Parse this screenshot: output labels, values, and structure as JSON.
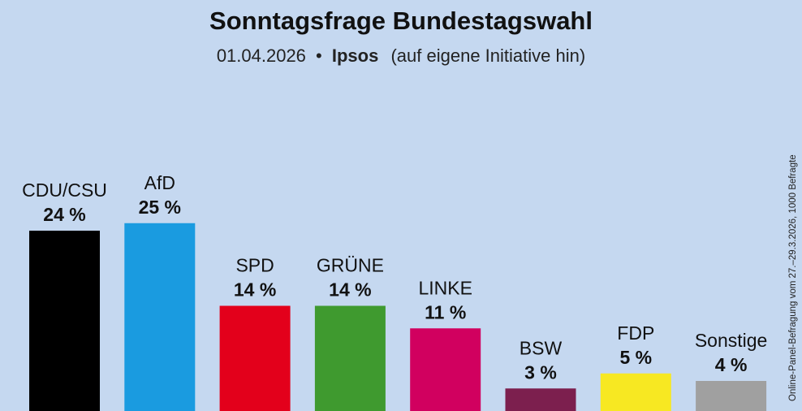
{
  "chart_data": {
    "type": "bar",
    "title": "Sonntagsfrage Bundestagswahl",
    "subtitle": {
      "date": "01.04.2026",
      "separator": "•",
      "institute": "Ipsos",
      "note": "(auf eigene Initiative hin)"
    },
    "categories": [
      "CDU/CSU",
      "AfD",
      "SPD",
      "GRÜNE",
      "LINKE",
      "BSW",
      "FDP",
      "Sonstige"
    ],
    "values": [
      24,
      25,
      14,
      14,
      11,
      3,
      5,
      4
    ],
    "value_labels": [
      "24 %",
      "25 %",
      "14 %",
      "14 %",
      "11 %",
      "3 %",
      "5 %",
      "4 %"
    ],
    "colors": [
      "#000000",
      "#1a9be0",
      "#e3001b",
      "#3f9a2f",
      "#d1005f",
      "#7c1f4e",
      "#f7e822",
      "#a0a0a0"
    ],
    "ylim": [
      0,
      25
    ],
    "grid": false,
    "side_note": "Online-Panel-Befragung vom 27.–29.3.2026, 1000 Befragte"
  }
}
